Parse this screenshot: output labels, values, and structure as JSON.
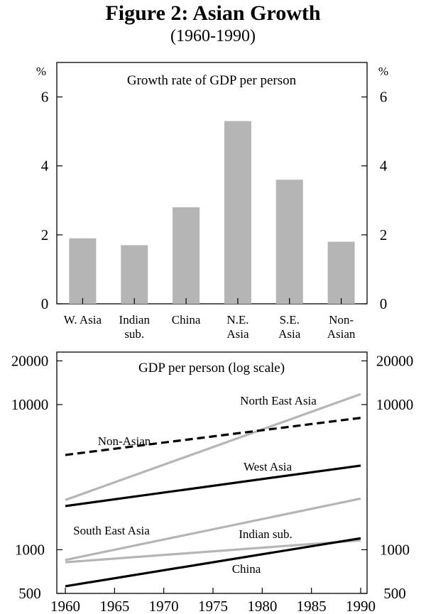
{
  "figure": {
    "title": "Figure 2: Asian Growth",
    "subtitle": "(1960-1990)"
  },
  "chart_data": [
    {
      "type": "bar",
      "title": "Growth rate of GDP per person",
      "ylabel_left": "%",
      "ylabel_right": "%",
      "ylim": [
        0,
        7
      ],
      "yticks": [
        0,
        2,
        4,
        6
      ],
      "categories": [
        [
          "W. Asia"
        ],
        [
          "Indian",
          "sub."
        ],
        [
          "China"
        ],
        [
          "N.E.",
          "Asia"
        ],
        [
          "S.E.",
          "Asia"
        ],
        [
          "Non-",
          "Asian"
        ]
      ],
      "values": [
        1.9,
        1.7,
        2.8,
        5.3,
        3.6,
        1.8
      ],
      "bar_color": "#b5b5b5"
    },
    {
      "type": "line",
      "title": "GDP per person (log scale)",
      "yscale": "log",
      "ylim": [
        500,
        23000
      ],
      "yticks": [
        500,
        1000,
        10000,
        20000
      ],
      "xlim": [
        1960,
        1990
      ],
      "xticks": [
        1960,
        1965,
        1970,
        1975,
        1980,
        1985,
        1990
      ],
      "series": [
        {
          "name": "North East Asia",
          "x": [
            1960,
            1990
          ],
          "values": [
            2200,
            11800
          ],
          "color": "#b5b5b5",
          "style": "solid"
        },
        {
          "name": "Non-Asian",
          "x": [
            1960,
            1990
          ],
          "values": [
            4500,
            8100
          ],
          "color": "#000000",
          "style": "dashed"
        },
        {
          "name": "West Asia",
          "x": [
            1960,
            1990
          ],
          "values": [
            2000,
            3800
          ],
          "color": "#000000",
          "style": "solid"
        },
        {
          "name": "South East Asia",
          "x": [
            1960,
            1990
          ],
          "values": [
            850,
            2250
          ],
          "color": "#b5b5b5",
          "style": "solid"
        },
        {
          "name": "Indian sub.",
          "x": [
            1960,
            1990
          ],
          "values": [
            820,
            1160
          ],
          "color": "#b5b5b5",
          "style": "solid"
        },
        {
          "name": "China",
          "x": [
            1960,
            1990
          ],
          "values": [
            560,
            1200
          ],
          "color": "#000000",
          "style": "solid"
        }
      ]
    }
  ]
}
